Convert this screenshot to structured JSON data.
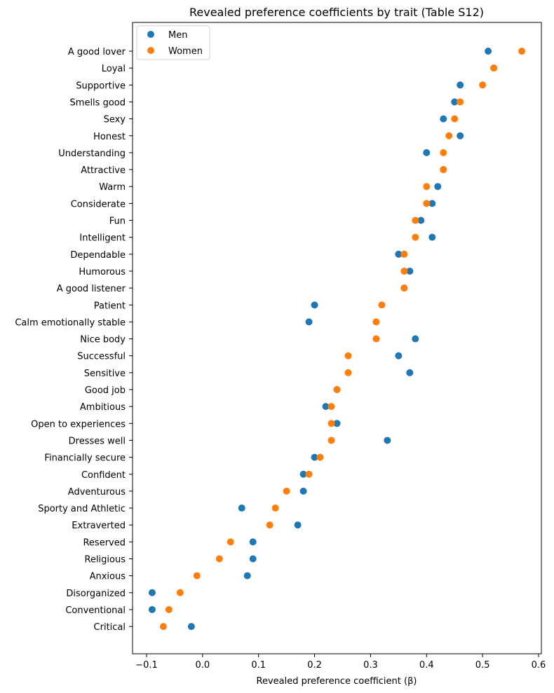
{
  "chart_data": {
    "type": "scatter",
    "title": "Revealed preference coefficients by trait (Table S12)",
    "xlabel": "Revealed preference coefficient (β)",
    "ylabel": "",
    "xlim": [
      -0.125,
      0.605
    ],
    "xticks": [
      -0.1,
      0.0,
      0.1,
      0.2,
      0.3,
      0.4,
      0.5,
      0.6
    ],
    "xtick_labels": [
      "−0.1",
      "0.0",
      "0.1",
      "0.2",
      "0.3",
      "0.4",
      "0.5",
      "0.6"
    ],
    "grid": false,
    "legend_position": "top-left",
    "categories": [
      "A good lover",
      "Loyal",
      "Supportive",
      "Smells good",
      "Sexy",
      "Honest",
      "Understanding",
      "Attractive",
      "Warm",
      "Considerate",
      "Fun",
      "Intelligent",
      "Dependable",
      "Humorous",
      "A good listener",
      "Patient",
      "Calm emotionally stable",
      "Nice body",
      "Successful",
      "Sensitive",
      "Good job",
      "Ambitious",
      "Open to experiences",
      "Dresses well",
      "Financially secure",
      "Confident",
      "Adventurous",
      "Sporty and Athletic",
      "Extraverted",
      "Reserved",
      "Religious",
      "Anxious",
      "Disorganized",
      "Conventional",
      "Critical"
    ],
    "series": [
      {
        "name": "Men",
        "color": "#1f77b4",
        "values": [
          0.51,
          0.52,
          0.46,
          0.45,
          0.43,
          0.46,
          0.4,
          0.43,
          0.42,
          0.41,
          0.39,
          0.41,
          0.35,
          0.37,
          0.36,
          0.2,
          0.19,
          0.38,
          0.35,
          0.37,
          0.24,
          0.22,
          0.24,
          0.33,
          0.2,
          0.18,
          0.18,
          0.07,
          0.17,
          0.09,
          0.09,
          0.08,
          -0.09,
          -0.09,
          -0.02
        ]
      },
      {
        "name": "Women",
        "color": "#ff7f0e",
        "values": [
          0.57,
          0.52,
          0.5,
          0.46,
          0.45,
          0.44,
          0.43,
          0.43,
          0.4,
          0.4,
          0.38,
          0.38,
          0.36,
          0.36,
          0.36,
          0.32,
          0.31,
          0.31,
          0.26,
          0.26,
          0.24,
          0.23,
          0.23,
          0.23,
          0.21,
          0.19,
          0.15,
          0.13,
          0.12,
          0.05,
          0.03,
          -0.01,
          -0.04,
          -0.06,
          -0.07
        ]
      }
    ]
  }
}
